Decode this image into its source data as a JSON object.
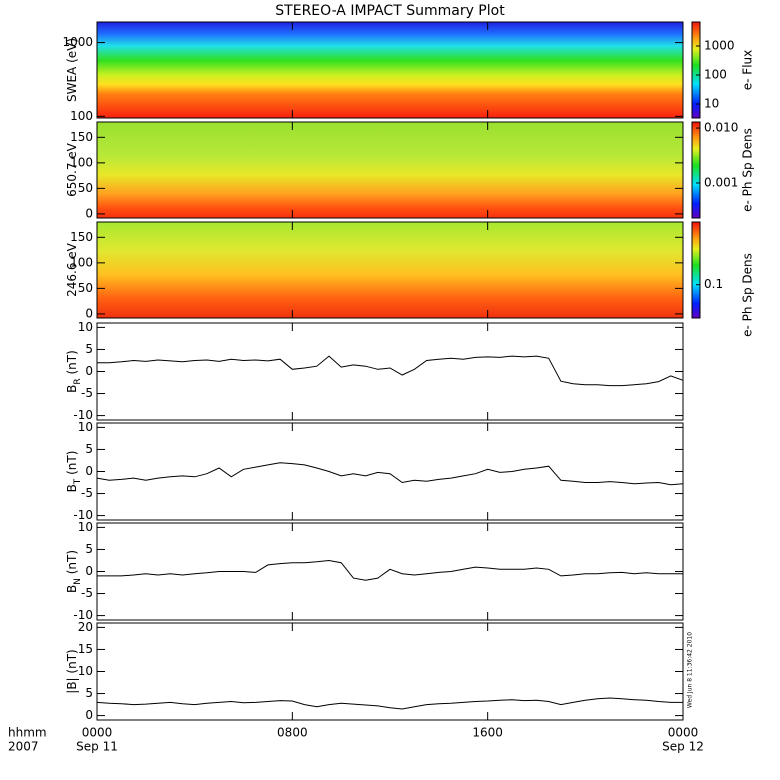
{
  "chart_data": [
    {
      "type": "spectrogram",
      "title": "STEREO-A IMPACT Summary Plot",
      "ylabel": [
        "SWEA (eV)"
      ],
      "ylog": true,
      "ylim": [
        95,
        1900
      ],
      "yticks": [
        100,
        1000
      ],
      "xlim": [
        0,
        24
      ],
      "colorbar": {
        "label": "e- Flux",
        "log": true,
        "lim": [
          3.3,
          6700
        ],
        "ticks": [
          10,
          100,
          1000
        ]
      }
    },
    {
      "type": "spectrogram",
      "ylabel": [
        "650.7 eV"
      ],
      "ylim": [
        -8,
        180
      ],
      "yticks": [
        0,
        50,
        100,
        150
      ],
      "xlim": [
        0,
        24
      ],
      "colorbar": {
        "label": "e- Ph Sp Dens",
        "log": true,
        "lim": [
          0.00023,
          0.0129
        ],
        "ticks": [
          {
            "value": 0.01,
            "label": "0.010"
          },
          0.001
        ]
      }
    },
    {
      "type": "spectrogram",
      "ylabel": [
        "246.6 eV"
      ],
      "ylim": [
        -8,
        180
      ],
      "yticks": [
        0,
        50,
        100,
        150
      ],
      "xlim": [
        0,
        24
      ],
      "colorbar": {
        "label": "e- Ph Sp Dens",
        "log": true,
        "lim": [
          0.028,
          1.1
        ],
        "ticks": [
          0.1
        ]
      }
    },
    {
      "type": "line",
      "ylabel": [
        "B",
        "R",
        " (nT)"
      ],
      "ylim": [
        -11,
        11
      ],
      "yticks": [
        -10,
        -5,
        0,
        5,
        10
      ],
      "xlim": [
        0,
        24
      ],
      "x": [
        0,
        0.5,
        1,
        1.5,
        2,
        2.5,
        3,
        3.5,
        4,
        4.5,
        5,
        5.5,
        6,
        6.5,
        7,
        7.5,
        8,
        8.5,
        9,
        9.5,
        10,
        10.5,
        11,
        11.5,
        12,
        12.5,
        13,
        13.5,
        14,
        14.5,
        15,
        15.5,
        16,
        16.5,
        17,
        17.5,
        18,
        18.5,
        19,
        19.5,
        20,
        20.5,
        21,
        21.5,
        22,
        22.5,
        23,
        23.5,
        24
      ],
      "values": [
        2,
        2,
        2.2,
        2.5,
        2.3,
        2.6,
        2.4,
        2.2,
        2.5,
        2.6,
        2.3,
        2.8,
        2.5,
        2.6,
        2.4,
        2.8,
        0.5,
        0.8,
        1.2,
        3.5,
        1,
        1.5,
        1.2,
        0.5,
        0.8,
        -0.8,
        0.5,
        2.5,
        2.8,
        3,
        2.8,
        3.2,
        3.3,
        3.2,
        3.5,
        3.3,
        3.5,
        3,
        -2.2,
        -2.8,
        -3,
        -3,
        -3.2,
        -3.2,
        -3,
        -2.8,
        -2.3,
        -1,
        -2
      ],
      "color": "#000000"
    },
    {
      "type": "line",
      "ylabel": [
        "B",
        "T",
        " (nT)"
      ],
      "ylim": [
        -11,
        11
      ],
      "yticks": [
        -10,
        -5,
        0,
        5,
        10
      ],
      "xlim": [
        0,
        24
      ],
      "x": [
        0,
        0.5,
        1,
        1.5,
        2,
        2.5,
        3,
        3.5,
        4,
        4.5,
        5,
        5.5,
        6,
        6.5,
        7,
        7.5,
        8,
        8.5,
        9,
        9.5,
        10,
        10.5,
        11,
        11.5,
        12,
        12.5,
        13,
        13.5,
        14,
        14.5,
        15,
        15.5,
        16,
        16.5,
        17,
        17.5,
        18,
        18.5,
        19,
        19.5,
        20,
        20.5,
        21,
        21.5,
        22,
        22.5,
        23,
        23.5,
        24
      ],
      "values": [
        -1.5,
        -2,
        -1.8,
        -1.5,
        -2,
        -1.5,
        -1.2,
        -1,
        -1.2,
        -0.5,
        0.8,
        -1.2,
        0.5,
        1,
        1.5,
        2,
        1.8,
        1.5,
        0.8,
        0,
        -1,
        -0.5,
        -1,
        -0.2,
        -0.5,
        -2.5,
        -2,
        -2.2,
        -1.8,
        -1.5,
        -1,
        -0.5,
        0.5,
        -0.2,
        0,
        0.5,
        0.8,
        1.2,
        -2,
        -2.2,
        -2.5,
        -2.5,
        -2.3,
        -2.5,
        -2.8,
        -2.6,
        -2.5,
        -3,
        -2.8
      ],
      "color": "#000000"
    },
    {
      "type": "line",
      "ylabel": [
        "B",
        "N",
        " (nT)"
      ],
      "ylim": [
        -11,
        11
      ],
      "yticks": [
        -10,
        -5,
        0,
        5,
        10
      ],
      "xlim": [
        0,
        24
      ],
      "x": [
        0,
        0.5,
        1,
        1.5,
        2,
        2.5,
        3,
        3.5,
        4,
        4.5,
        5,
        5.5,
        6,
        6.5,
        7,
        7.5,
        8,
        8.5,
        9,
        9.5,
        10,
        10.5,
        11,
        11.5,
        12,
        12.5,
        13,
        13.5,
        14,
        14.5,
        15,
        15.5,
        16,
        16.5,
        17,
        17.5,
        18,
        18.5,
        19,
        19.5,
        20,
        20.5,
        21,
        21.5,
        22,
        22.5,
        23,
        23.5,
        24
      ],
      "values": [
        -1,
        -1,
        -1,
        -0.8,
        -0.5,
        -0.8,
        -0.5,
        -0.8,
        -0.5,
        -0.3,
        0,
        0,
        0,
        -0.2,
        1.5,
        1.8,
        2,
        2,
        2.2,
        2.5,
        2,
        -1.5,
        -2,
        -1.5,
        0.5,
        -0.5,
        -0.8,
        -0.5,
        -0.2,
        0,
        0.5,
        1,
        0.8,
        0.5,
        0.5,
        0.5,
        0.8,
        0.5,
        -1,
        -0.8,
        -0.5,
        -0.5,
        -0.3,
        -0.2,
        -0.5,
        -0.3,
        -0.5,
        -0.5,
        -0.5
      ],
      "color": "#000000"
    },
    {
      "type": "line",
      "ylabel": [
        "|B| (nT)"
      ],
      "ylim": [
        -1,
        21
      ],
      "yticks": [
        0,
        5,
        10,
        15,
        20
      ],
      "xlim": [
        0,
        24
      ],
      "x": [
        0,
        0.5,
        1,
        1.5,
        2,
        2.5,
        3,
        3.5,
        4,
        4.5,
        5,
        5.5,
        6,
        6.5,
        7,
        7.5,
        8,
        8.5,
        9,
        9.5,
        10,
        10.5,
        11,
        11.5,
        12,
        12.5,
        13,
        13.5,
        14,
        14.5,
        15,
        15.5,
        16,
        16.5,
        17,
        17.5,
        18,
        18.5,
        19,
        19.5,
        20,
        20.5,
        21,
        21.5,
        22,
        22.5,
        23,
        23.5,
        24
      ],
      "values": [
        3,
        2.8,
        2.7,
        2.5,
        2.6,
        2.8,
        3,
        2.7,
        2.5,
        2.8,
        3,
        3.2,
        2.9,
        3,
        3.2,
        3.4,
        3.3,
        2.5,
        2,
        2.5,
        2.8,
        2.6,
        2.4,
        2.2,
        1.8,
        1.5,
        2,
        2.5,
        2.7,
        2.8,
        3,
        3.2,
        3.3,
        3.5,
        3.6,
        3.4,
        3.5,
        3.2,
        2.5,
        3,
        3.5,
        3.8,
        4,
        3.8,
        3.6,
        3.5,
        3.2,
        3,
        3
      ],
      "color": "#000000",
      "xticks": [
        {
          "value": 0,
          "label": "0000"
        },
        {
          "value": 8,
          "label": "0800"
        },
        {
          "value": 16,
          "label": "1600"
        },
        {
          "value": 24,
          "label": "0000"
        }
      ],
      "xdates": [
        {
          "value": 0,
          "label": "Sep 11"
        },
        {
          "value": 24,
          "label": "Sep 12"
        }
      ],
      "xlabel": [
        "hhmm",
        "2007"
      ],
      "annotation": "Wed Jun 8 11:36:42 2010"
    }
  ]
}
